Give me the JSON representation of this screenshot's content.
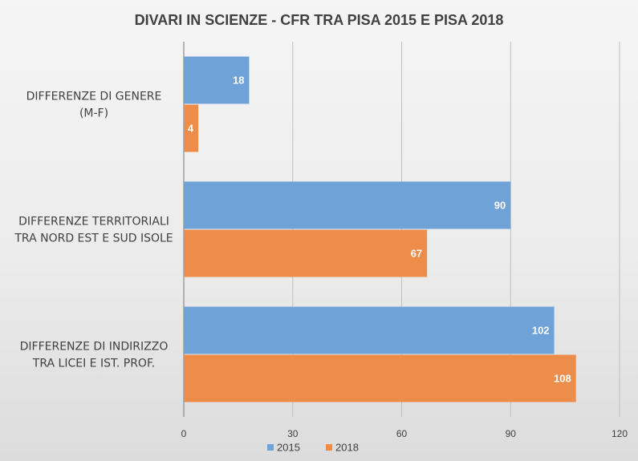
{
  "colors": {
    "series_2015": "#6fa3d8",
    "series_2018": "#ee8c4a",
    "gridline": "#bfbfbf",
    "text": "#404040"
  },
  "chart_data": {
    "type": "bar",
    "orientation": "horizontal",
    "title": "DIVARI IN SCIENZE - CFR TRA PISA 2015 E PISA 2018",
    "categories": [
      [
        "DIFFERENZE DI GENERE",
        "(M-F)"
      ],
      [
        "DIFFERENZE TERRITORIALI",
        "TRA NORD EST E SUD ISOLE"
      ],
      [
        "DIFFERENZE DI INDIRIZZO",
        "TRA LICEI E IST. PROF."
      ]
    ],
    "series": [
      {
        "name": "2015",
        "values": [
          18,
          90,
          102
        ]
      },
      {
        "name": "2018",
        "values": [
          4,
          67,
          108
        ]
      }
    ],
    "xlim": [
      0,
      120
    ],
    "xticks": [
      "0",
      "30",
      "60",
      "90",
      "120"
    ],
    "grid": true,
    "legend": "bottom",
    "data_labels": true
  }
}
